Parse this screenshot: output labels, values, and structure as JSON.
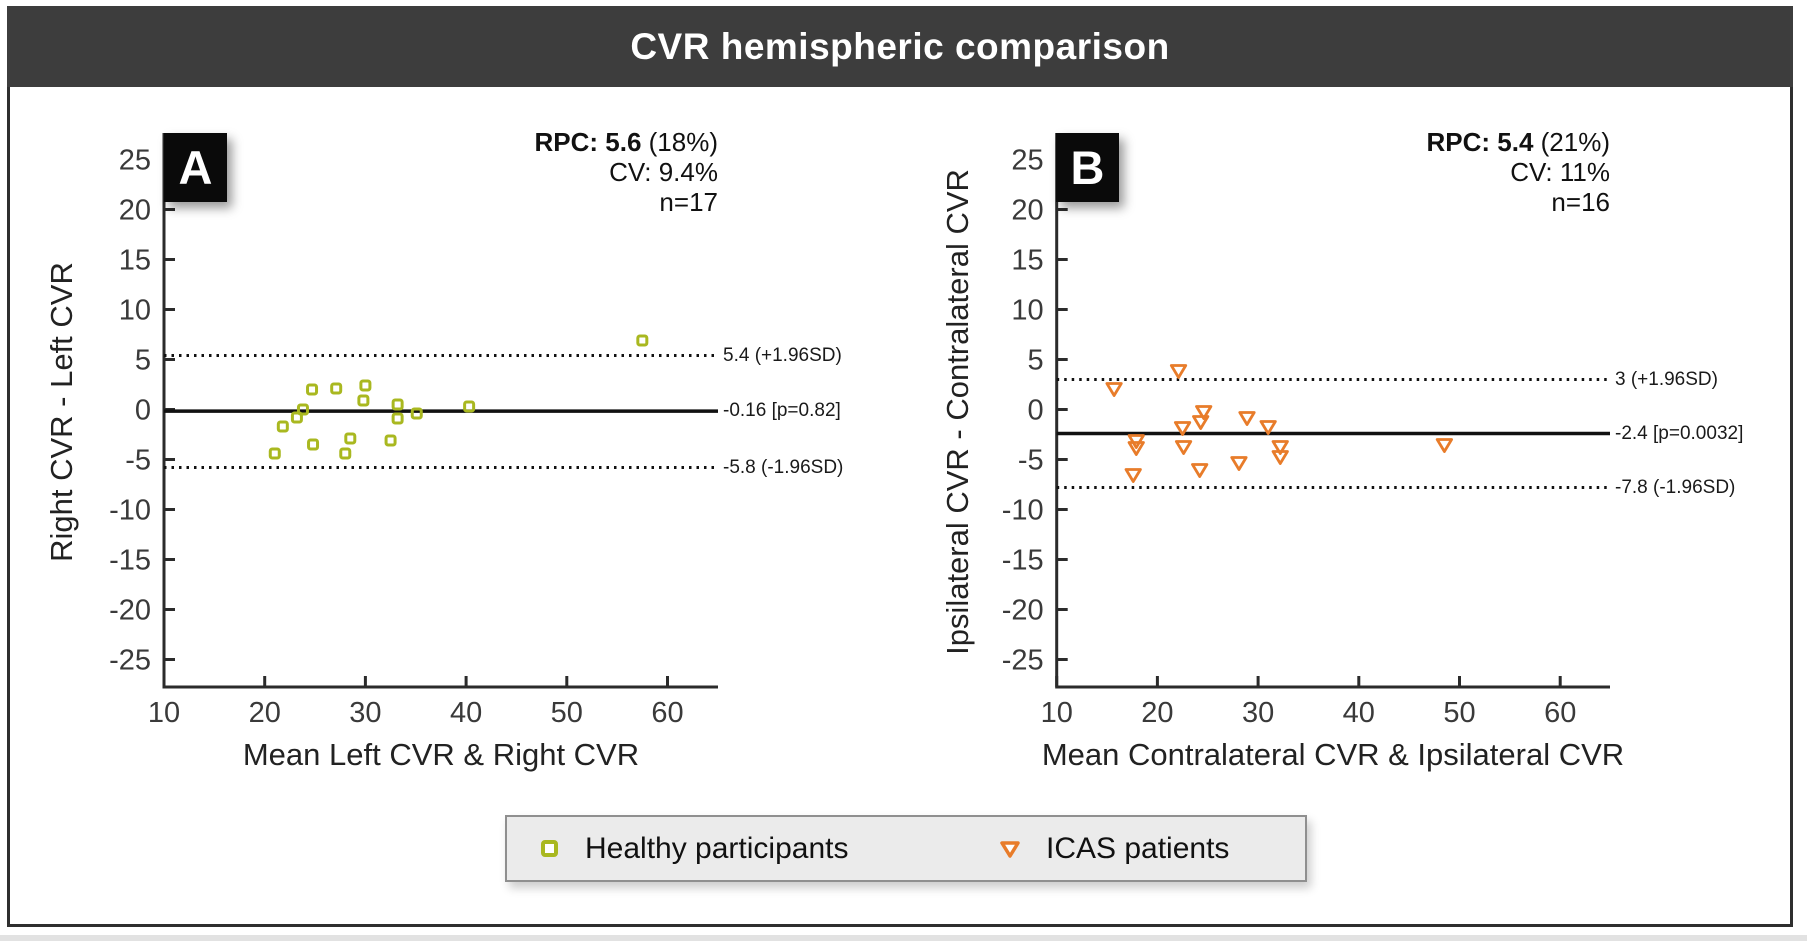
{
  "page": {
    "title": "CVR hemispheric comparison"
  },
  "legend": {
    "items": [
      {
        "label": "Healthy participants",
        "marker": "square",
        "color": "#a9b820"
      },
      {
        "label": "ICAS patients",
        "marker": "triangle-down",
        "color": "#e87c2a"
      }
    ]
  },
  "chart_data": [
    {
      "type": "scatter",
      "panel": "A",
      "series": "Healthy participants",
      "marker": "square",
      "color": "#a9b820",
      "stats": {
        "rpc_bold": "RPC: 5.6",
        "rpc_rest": "(18%)",
        "cv": "CV: 9.4%",
        "n": "n=17"
      },
      "xlabel": "Mean Left CVR & Right CVR",
      "ylabel": "Right CVR - Left CVR",
      "xlim": [
        10,
        65
      ],
      "ylim": [
        -27.8,
        27.6
      ],
      "xticks": [
        10,
        20,
        30,
        40,
        50,
        60
      ],
      "yticks": [
        25,
        20,
        15,
        10,
        5,
        0,
        -5,
        -10,
        -15,
        -20,
        -25
      ],
      "mean": -0.16,
      "mean_label": "-0.16 [p=0.82]",
      "loa_upper": 5.4,
      "loa_upper_label": "5.4 (+1.96SD)",
      "loa_lower": -5.8,
      "loa_lower_label": "-5.8 (-1.96SD)",
      "points": [
        [
          57.5,
          6.9
        ],
        [
          24.7,
          2
        ],
        [
          27.1,
          2.1
        ],
        [
          30,
          2.4
        ],
        [
          29.8,
          0.9
        ],
        [
          33.2,
          0.5
        ],
        [
          33.2,
          -0.9
        ],
        [
          35.1,
          -0.4
        ],
        [
          40.3,
          0.3
        ],
        [
          23.8,
          0
        ],
        [
          23.2,
          -0.8
        ],
        [
          21.8,
          -1.7
        ],
        [
          28.5,
          -2.9
        ],
        [
          32.5,
          -3.1
        ],
        [
          24.8,
          -3.5
        ],
        [
          28,
          -4.4
        ],
        [
          21,
          -4.4
        ]
      ]
    },
    {
      "type": "scatter",
      "panel": "B",
      "series": "ICAS patients",
      "marker": "triangle-down",
      "color": "#e87c2a",
      "stats": {
        "rpc_bold": "RPC: 5.4",
        "rpc_rest": "(21%)",
        "cv": "CV: 11%",
        "n": "n=16"
      },
      "xlabel": "Mean Contralateral CVR & Ipsilateral CVR",
      "ylabel": "Ipsilateral CVR - Contralateral CVR",
      "xlim": [
        10,
        65
      ],
      "ylim": [
        -27.8,
        27.6
      ],
      "xticks": [
        10,
        20,
        30,
        40,
        50,
        60
      ],
      "yticks": [
        25,
        20,
        15,
        10,
        5,
        0,
        -5,
        -10,
        -15,
        -20,
        -25
      ],
      "mean": -2.4,
      "mean_label": "-2.4 [p=0.0032]",
      "loa_upper": 3,
      "loa_upper_label": "3 (+1.96SD)",
      "loa_lower": -7.8,
      "loa_lower_label": "-7.8 (-1.96SD)",
      "points": [
        [
          15.7,
          2.1
        ],
        [
          22.1,
          3.9
        ],
        [
          24.6,
          -0.2
        ],
        [
          24.3,
          -1.2
        ],
        [
          22.5,
          -1.8
        ],
        [
          28.9,
          -0.8
        ],
        [
          31,
          -1.7
        ],
        [
          17.9,
          -3.1
        ],
        [
          17.9,
          -3.8
        ],
        [
          22.6,
          -3.7
        ],
        [
          32.2,
          -3.7
        ],
        [
          32.2,
          -4.7
        ],
        [
          28.1,
          -5.3
        ],
        [
          24.2,
          -6
        ],
        [
          17.6,
          -6.5
        ],
        [
          48.5,
          -3.5
        ]
      ]
    }
  ]
}
